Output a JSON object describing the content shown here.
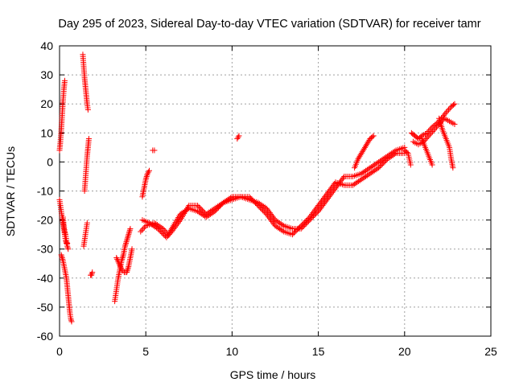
{
  "chart_data": {
    "type": "scatter",
    "title": "Day 295 of 2023, Sidereal Day-to-day VTEC variation (SDTVAR) for receiver tamr",
    "xlabel": "GPS time / hours",
    "ylabel": "SDTVAR / TECUs",
    "xlim": [
      0,
      25
    ],
    "ylim": [
      -60,
      40
    ],
    "xticks": [
      0,
      5,
      10,
      15,
      20,
      25
    ],
    "yticks": [
      -60,
      -50,
      -40,
      -30,
      -20,
      -10,
      0,
      10,
      20,
      30,
      40
    ],
    "grid": true,
    "marker": "+",
    "color": "#ff0000",
    "series": [
      {
        "name": "SDTVAR",
        "segments": [
          [
            [
              0.0,
              4
            ],
            [
              0.05,
              7
            ],
            [
              0.1,
              11
            ],
            [
              0.15,
              16
            ],
            [
              0.2,
              21
            ],
            [
              0.25,
              25
            ],
            [
              0.3,
              28
            ]
          ],
          [
            [
              0.0,
              -13
            ],
            [
              0.05,
              -15
            ],
            [
              0.1,
              -17
            ],
            [
              0.15,
              -19
            ],
            [
              0.2,
              -21
            ],
            [
              0.25,
              -23
            ],
            [
              0.3,
              -25
            ],
            [
              0.35,
              -27
            ],
            [
              0.4,
              -28
            ],
            [
              0.45,
              -28
            ]
          ],
          [
            [
              0.2,
              -19
            ],
            [
              0.25,
              -22
            ],
            [
              0.3,
              -24
            ],
            [
              0.35,
              -25
            ],
            [
              0.4,
              -27
            ],
            [
              0.45,
              -29
            ],
            [
              0.5,
              -30
            ]
          ],
          [
            [
              0.1,
              -32
            ],
            [
              0.2,
              -34
            ],
            [
              0.3,
              -37
            ],
            [
              0.4,
              -40
            ],
            [
              0.45,
              -43
            ],
            [
              0.5,
              -46
            ],
            [
              0.55,
              -49
            ],
            [
              0.6,
              -52
            ],
            [
              0.65,
              -54
            ],
            [
              0.7,
              -55
            ]
          ],
          [
            [
              1.35,
              37
            ],
            [
              1.4,
              33
            ],
            [
              1.45,
              29
            ],
            [
              1.5,
              26
            ],
            [
              1.55,
              23
            ],
            [
              1.6,
              20
            ],
            [
              1.65,
              18
            ]
          ],
          [
            [
              1.45,
              -10
            ],
            [
              1.5,
              -6
            ],
            [
              1.55,
              -2
            ],
            [
              1.6,
              2
            ],
            [
              1.65,
              5
            ],
            [
              1.7,
              8
            ]
          ],
          [
            [
              1.4,
              -29
            ],
            [
              1.45,
              -27
            ],
            [
              1.5,
              -25
            ],
            [
              1.55,
              -23
            ],
            [
              1.6,
              -21
            ]
          ],
          [
            [
              1.8,
              -39
            ],
            [
              1.85,
              -39
            ],
            [
              1.9,
              -38
            ]
          ],
          [
            [
              3.2,
              -48
            ],
            [
              3.3,
              -44
            ],
            [
              3.4,
              -40
            ],
            [
              3.5,
              -37
            ],
            [
              3.6,
              -34
            ],
            [
              3.7,
              -32
            ],
            [
              3.8,
              -29
            ],
            [
              3.9,
              -27
            ],
            [
              4.0,
              -25
            ],
            [
              4.1,
              -23
            ]
          ],
          [
            [
              3.3,
              -33
            ],
            [
              3.45,
              -35
            ],
            [
              3.6,
              -37
            ],
            [
              3.75,
              -38
            ],
            [
              3.9,
              -38
            ],
            [
              4.0,
              -36
            ],
            [
              4.1,
              -33
            ],
            [
              4.2,
              -30
            ]
          ],
          [
            [
              4.8,
              -12
            ],
            [
              4.9,
              -9
            ],
            [
              5.0,
              -6
            ],
            [
              5.1,
              -4
            ],
            [
              5.2,
              -3
            ]
          ],
          [
            [
              5.4,
              4
            ],
            [
              5.5,
              4
            ]
          ],
          [
            [
              4.7,
              -24
            ],
            [
              5.0,
              -22
            ],
            [
              5.5,
              -21
            ],
            [
              6.0,
              -23
            ],
            [
              6.3,
              -25
            ],
            [
              6.6,
              -22
            ],
            [
              7.0,
              -18
            ],
            [
              7.5,
              -16
            ],
            [
              8.0,
              -17
            ],
            [
              8.5,
              -19
            ],
            [
              9.0,
              -17
            ],
            [
              9.5,
              -14
            ],
            [
              10.0,
              -12
            ],
            [
              10.5,
              -12
            ],
            [
              11.0,
              -13
            ],
            [
              11.5,
              -14
            ],
            [
              12.0,
              -16
            ],
            [
              12.5,
              -20
            ],
            [
              13.0,
              -22
            ],
            [
              13.5,
              -23
            ],
            [
              14.0,
              -23
            ],
            [
              14.5,
              -20
            ],
            [
              15.0,
              -17
            ],
            [
              15.5,
              -13
            ],
            [
              16.0,
              -9
            ],
            [
              16.5,
              -5
            ],
            [
              17.0,
              -5
            ],
            [
              17.5,
              -4
            ],
            [
              18.0,
              -2
            ],
            [
              18.5,
              0
            ],
            [
              19.0,
              2
            ],
            [
              19.5,
              4
            ],
            [
              20.0,
              5
            ]
          ],
          [
            [
              4.8,
              -20
            ],
            [
              5.2,
              -21
            ],
            [
              5.7,
              -23
            ],
            [
              6.2,
              -26
            ],
            [
              6.5,
              -24
            ],
            [
              7.0,
              -20
            ],
            [
              7.5,
              -15
            ],
            [
              8.0,
              -15
            ],
            [
              8.5,
              -18
            ],
            [
              9.0,
              -16
            ],
            [
              9.5,
              -14
            ],
            [
              10.0,
              -13
            ],
            [
              10.5,
              -12
            ],
            [
              11.0,
              -12
            ],
            [
              11.5,
              -15
            ],
            [
              12.0,
              -18
            ],
            [
              12.5,
              -22
            ],
            [
              13.0,
              -24
            ],
            [
              13.5,
              -25
            ],
            [
              14.0,
              -22
            ],
            [
              14.5,
              -19
            ],
            [
              15.0,
              -15
            ],
            [
              15.5,
              -11
            ],
            [
              16.0,
              -7
            ],
            [
              16.5,
              -8
            ],
            [
              17.0,
              -8
            ],
            [
              17.5,
              -6
            ],
            [
              18.0,
              -4
            ],
            [
              18.5,
              -2
            ],
            [
              19.0,
              1
            ],
            [
              19.5,
              3
            ],
            [
              20.0,
              3
            ]
          ],
          [
            [
              10.3,
              8
            ],
            [
              10.4,
              9
            ]
          ],
          [
            [
              17.1,
              -2
            ],
            [
              17.3,
              1
            ],
            [
              17.5,
              3
            ],
            [
              17.7,
              5
            ],
            [
              18.0,
              8
            ],
            [
              18.2,
              9
            ]
          ],
          [
            [
              20.4,
              10
            ],
            [
              20.6,
              9
            ],
            [
              20.8,
              8
            ],
            [
              21.0,
              9
            ],
            [
              21.3,
              10
            ],
            [
              21.6,
              12
            ],
            [
              22.0,
              14
            ],
            [
              22.4,
              17
            ],
            [
              22.7,
              19
            ],
            [
              22.9,
              20
            ]
          ],
          [
            [
              20.5,
              7
            ],
            [
              20.8,
              6
            ],
            [
              21.1,
              7
            ],
            [
              21.4,
              9
            ],
            [
              21.7,
              11
            ],
            [
              22.0,
              13
            ],
            [
              22.3,
              15
            ],
            [
              22.6,
              14
            ],
            [
              22.9,
              13
            ]
          ],
          [
            [
              21.0,
              8
            ],
            [
              21.2,
              5
            ],
            [
              21.4,
              2
            ],
            [
              21.6,
              -1
            ]
          ],
          [
            [
              22.0,
              15
            ],
            [
              22.2,
              11
            ],
            [
              22.4,
              8
            ],
            [
              22.6,
              5
            ],
            [
              22.7,
              1
            ],
            [
              22.8,
              -2
            ]
          ],
          [
            [
              20.0,
              4
            ],
            [
              20.2,
              3
            ],
            [
              20.35,
              -1
            ]
          ]
        ]
      }
    ]
  }
}
